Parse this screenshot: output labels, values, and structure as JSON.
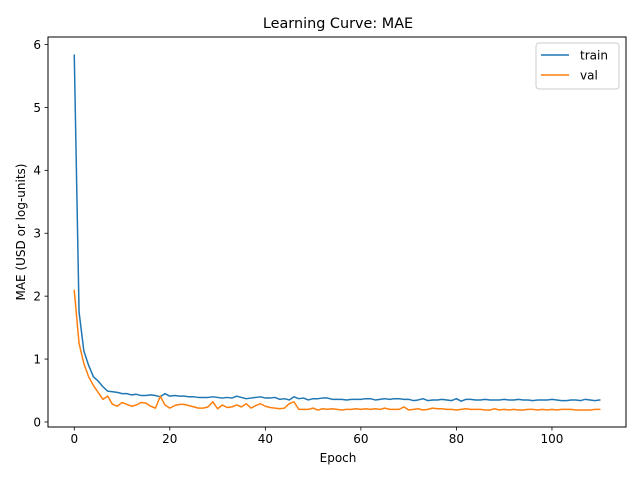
{
  "chart_data": {
    "type": "line",
    "title": "Learning Curve: MAE",
    "xlabel": "Epoch",
    "ylabel": "MAE (USD or log-units)",
    "xlim": [
      -5.5,
      115.5
    ],
    "ylim": [
      -0.08,
      6.12
    ],
    "xticks": [
      0,
      20,
      40,
      60,
      80,
      100
    ],
    "yticks": [
      0,
      1,
      2,
      3,
      4,
      5,
      6
    ],
    "grid": false,
    "legend_position": "top-right",
    "x": [
      0,
      1,
      2,
      3,
      4,
      5,
      6,
      7,
      8,
      9,
      10,
      11,
      12,
      13,
      14,
      15,
      16,
      17,
      18,
      19,
      20,
      21,
      22,
      23,
      24,
      25,
      26,
      27,
      28,
      29,
      30,
      31,
      32,
      33,
      34,
      35,
      36,
      37,
      38,
      39,
      40,
      41,
      42,
      43,
      44,
      45,
      46,
      47,
      48,
      49,
      50,
      51,
      52,
      53,
      54,
      55,
      56,
      57,
      58,
      59,
      60,
      61,
      62,
      63,
      64,
      65,
      66,
      67,
      68,
      69,
      70,
      71,
      72,
      73,
      74,
      75,
      76,
      77,
      78,
      79,
      80,
      81,
      82,
      83,
      84,
      85,
      86,
      87,
      88,
      89,
      90,
      91,
      92,
      93,
      94,
      95,
      96,
      97,
      98,
      99,
      100,
      101,
      102,
      103,
      104,
      105,
      106,
      107,
      108,
      109,
      110
    ],
    "series": [
      {
        "name": "train",
        "color": "#1f77b4",
        "values": [
          5.83,
          1.75,
          1.13,
          0.9,
          0.72,
          0.65,
          0.56,
          0.49,
          0.48,
          0.47,
          0.45,
          0.45,
          0.43,
          0.44,
          0.42,
          0.42,
          0.43,
          0.42,
          0.4,
          0.45,
          0.41,
          0.42,
          0.41,
          0.41,
          0.4,
          0.4,
          0.39,
          0.39,
          0.39,
          0.4,
          0.39,
          0.38,
          0.39,
          0.38,
          0.41,
          0.39,
          0.37,
          0.38,
          0.39,
          0.4,
          0.38,
          0.38,
          0.39,
          0.36,
          0.37,
          0.35,
          0.4,
          0.37,
          0.38,
          0.35,
          0.37,
          0.37,
          0.38,
          0.38,
          0.36,
          0.36,
          0.36,
          0.35,
          0.36,
          0.36,
          0.36,
          0.37,
          0.37,
          0.35,
          0.36,
          0.37,
          0.36,
          0.37,
          0.37,
          0.36,
          0.36,
          0.34,
          0.35,
          0.37,
          0.34,
          0.35,
          0.35,
          0.36,
          0.35,
          0.34,
          0.37,
          0.33,
          0.36,
          0.36,
          0.35,
          0.35,
          0.36,
          0.35,
          0.35,
          0.35,
          0.36,
          0.35,
          0.35,
          0.36,
          0.35,
          0.35,
          0.34,
          0.35,
          0.35,
          0.35,
          0.36,
          0.35,
          0.34,
          0.34,
          0.35,
          0.35,
          0.34,
          0.36,
          0.35,
          0.34,
          0.35
        ]
      },
      {
        "name": "val",
        "color": "#ff7f0e",
        "values": [
          2.09,
          1.25,
          0.93,
          0.72,
          0.58,
          0.47,
          0.36,
          0.41,
          0.28,
          0.25,
          0.31,
          0.28,
          0.25,
          0.27,
          0.31,
          0.3,
          0.25,
          0.22,
          0.41,
          0.27,
          0.22,
          0.26,
          0.28,
          0.28,
          0.26,
          0.24,
          0.22,
          0.22,
          0.24,
          0.32,
          0.21,
          0.27,
          0.23,
          0.24,
          0.27,
          0.24,
          0.29,
          0.22,
          0.26,
          0.29,
          0.25,
          0.23,
          0.22,
          0.21,
          0.22,
          0.29,
          0.32,
          0.2,
          0.2,
          0.2,
          0.22,
          0.19,
          0.21,
          0.2,
          0.21,
          0.2,
          0.19,
          0.2,
          0.2,
          0.21,
          0.2,
          0.21,
          0.2,
          0.21,
          0.2,
          0.22,
          0.2,
          0.2,
          0.2,
          0.24,
          0.19,
          0.2,
          0.21,
          0.19,
          0.2,
          0.22,
          0.21,
          0.21,
          0.2,
          0.2,
          0.19,
          0.2,
          0.21,
          0.2,
          0.2,
          0.2,
          0.19,
          0.19,
          0.21,
          0.19,
          0.2,
          0.19,
          0.2,
          0.19,
          0.19,
          0.2,
          0.2,
          0.19,
          0.2,
          0.19,
          0.2,
          0.19,
          0.2,
          0.2,
          0.2,
          0.19,
          0.19,
          0.19,
          0.19,
          0.2,
          0.2
        ]
      }
    ]
  }
}
